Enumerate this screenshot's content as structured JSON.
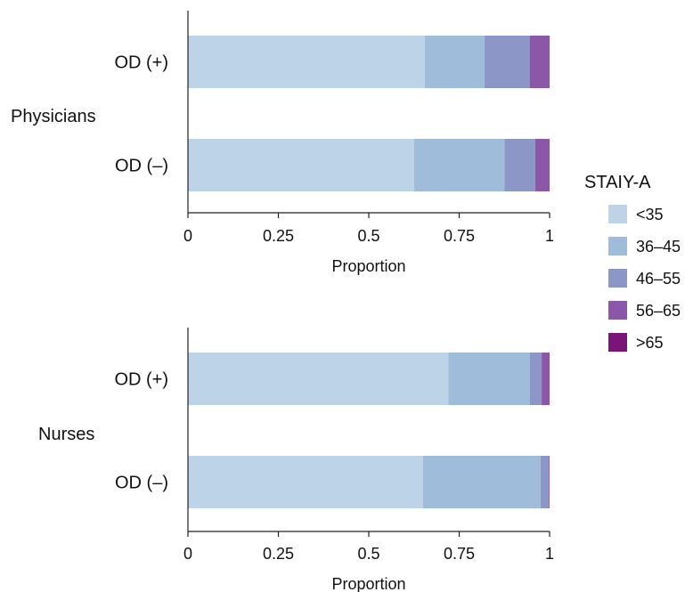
{
  "chart_data": {
    "type": "bar",
    "orientation": "horizontal",
    "stacked": true,
    "x_tick_labels": [
      "0",
      "0.25",
      "0.5",
      "0.75",
      "1"
    ],
    "x_ticks": [
      0,
      0.25,
      0.5,
      0.75,
      1
    ],
    "xlim": [
      0,
      1
    ],
    "legend": {
      "title": "STAIY-A",
      "placement": "right",
      "entries": [
        "<35",
        "36–45",
        "46–55",
        "56–65",
        ">65"
      ]
    },
    "colors": [
      "#bdd3e8",
      "#9fbddb",
      "#8c97c8",
      "#8c57a8",
      "#7b1478"
    ],
    "panels": [
      {
        "group_label": "Physicians",
        "xlabel": "Proportion",
        "categories": [
          "OD (+)",
          "OD (–)"
        ],
        "series": [
          {
            "name": "<35",
            "values": [
              0.655,
              0.625
            ]
          },
          {
            "name": "36–45",
            "values": [
              0.165,
              0.25
            ]
          },
          {
            "name": "46–55",
            "values": [
              0.125,
              0.085
            ]
          },
          {
            "name": "56–65",
            "values": [
              0.055,
              0.04
            ]
          },
          {
            "name": ">65",
            "values": [
              0.0,
              0.0
            ]
          }
        ]
      },
      {
        "group_label": "Nurses",
        "xlabel": "Proportion",
        "categories": [
          "OD (+)",
          "OD (–)"
        ],
        "series": [
          {
            "name": "<35",
            "values": [
              0.72,
              0.65
            ]
          },
          {
            "name": "36–45",
            "values": [
              0.225,
              0.325
            ]
          },
          {
            "name": "46–55",
            "values": [
              0.033,
              0.023
            ]
          },
          {
            "name": "56–65",
            "values": [
              0.022,
              0.002
            ]
          },
          {
            "name": ">65",
            "values": [
              0.0,
              0.0
            ]
          }
        ]
      }
    ]
  }
}
